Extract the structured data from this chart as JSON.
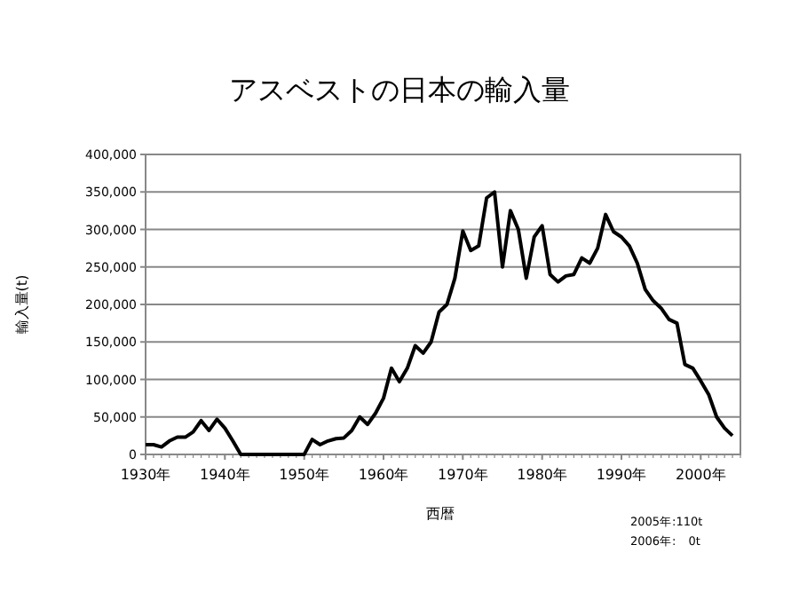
{
  "chart_data": {
    "type": "line",
    "title": "アスベストの日本の輸入量",
    "xlabel": "西暦",
    "ylabel": "輸入量(t)",
    "x": [
      1930,
      1931,
      1932,
      1933,
      1934,
      1935,
      1936,
      1937,
      1938,
      1939,
      1940,
      1941,
      1942,
      1943,
      1944,
      1945,
      1946,
      1947,
      1948,
      1949,
      1950,
      1951,
      1952,
      1953,
      1954,
      1955,
      1956,
      1957,
      1958,
      1959,
      1960,
      1961,
      1962,
      1963,
      1964,
      1965,
      1966,
      1967,
      1968,
      1969,
      1970,
      1971,
      1972,
      1973,
      1974,
      1975,
      1976,
      1977,
      1978,
      1979,
      1980,
      1981,
      1982,
      1983,
      1984,
      1985,
      1986,
      1987,
      1988,
      1989,
      1990,
      1991,
      1992,
      1993,
      1994,
      1995,
      1996,
      1997,
      1998,
      1999,
      2000,
      2001,
      2002,
      2003,
      2004
    ],
    "series": [
      {
        "color": "#000000",
        "values": [
          13000,
          13000,
          10000,
          18000,
          23000,
          23000,
          30000,
          45000,
          32000,
          47000,
          35000,
          18000,
          0,
          0,
          0,
          0,
          0,
          0,
          0,
          0,
          0,
          20000,
          13000,
          18000,
          21000,
          22000,
          32000,
          50000,
          40000,
          55000,
          75000,
          115000,
          97000,
          115000,
          145000,
          135000,
          150000,
          190000,
          200000,
          235000,
          298000,
          272000,
          278000,
          342000,
          350000,
          250000,
          325000,
          300000,
          235000,
          290000,
          305000,
          240000,
          230000,
          238000,
          240000,
          262000,
          255000,
          275000,
          320000,
          297000,
          290000,
          278000,
          255000,
          220000,
          205000,
          195000,
          180000,
          175000,
          120000,
          115000,
          98000,
          80000,
          50000,
          35000,
          25000
        ]
      }
    ],
    "xlim": [
      1930,
      2005
    ],
    "ylim": [
      0,
      400000
    ],
    "xticks": [
      {
        "value": 1930,
        "label": "1930年"
      },
      {
        "value": 1940,
        "label": "1940年"
      },
      {
        "value": 1950,
        "label": "1950年"
      },
      {
        "value": 1960,
        "label": "1960年"
      },
      {
        "value": 1970,
        "label": "1970年"
      },
      {
        "value": 1980,
        "label": "1980年"
      },
      {
        "value": 1990,
        "label": "1990年"
      },
      {
        "value": 2000,
        "label": "2000年"
      }
    ],
    "yticks": [
      0,
      {
        "value": 50000,
        "label": "50,000"
      },
      {
        "value": 100000,
        "label": "100,000"
      },
      {
        "value": 150000,
        "label": "150,000"
      },
      {
        "value": 200000,
        "label": "200,000"
      },
      {
        "value": 250000,
        "label": "250,000"
      },
      {
        "value": 300000,
        "label": "300,000"
      },
      {
        "value": 350000,
        "label": "350,000"
      },
      {
        "value": 400000,
        "label": "400,000"
      }
    ],
    "grid": "y",
    "marker": "none",
    "line_style": "solid",
    "annotations": [
      "2005年:110t",
      "2006年:　0t"
    ]
  }
}
